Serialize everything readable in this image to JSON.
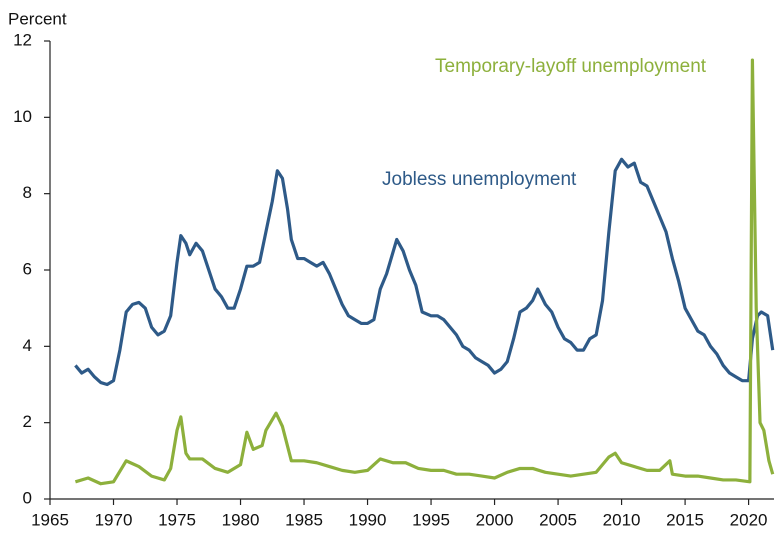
{
  "chart_data": {
    "type": "line",
    "ylabel": "Percent",
    "xlim": [
      1965,
      2022
    ],
    "xticks": [
      1965,
      1970,
      1975,
      1980,
      1985,
      1990,
      1995,
      2000,
      2005,
      2010,
      2015,
      2020
    ],
    "ylim": [
      0,
      12
    ],
    "yticks": [
      0,
      2,
      4,
      6,
      8,
      10,
      12
    ],
    "grid": false,
    "series": [
      {
        "name": "Jobless unemployment",
        "color": "#2e5a88",
        "x": [
          1967,
          1967.5,
          1968,
          1968.5,
          1969,
          1969.5,
          1970,
          1970.5,
          1971,
          1971.5,
          1972,
          1972.5,
          1973,
          1973.5,
          1974,
          1974.5,
          1975,
          1975.3,
          1975.7,
          1976,
          1976.5,
          1977,
          1977.5,
          1978,
          1978.5,
          1979,
          1979.5,
          1980,
          1980.5,
          1981,
          1981.5,
          1982,
          1982.5,
          1982.9,
          1983.3,
          1983.7,
          1984,
          1984.5,
          1985,
          1985.5,
          1986,
          1986.5,
          1987,
          1987.5,
          1988,
          1988.5,
          1989,
          1989.5,
          1990,
          1990.5,
          1991,
          1991.5,
          1992.3,
          1992.8,
          1993.3,
          1993.8,
          1994.3,
          1995,
          1995.5,
          1996,
          1996.5,
          1997,
          1997.5,
          1998,
          1998.5,
          1999,
          1999.5,
          2000,
          2000.5,
          2001,
          2001.5,
          2002,
          2002.5,
          2003,
          2003.4,
          2004,
          2004.5,
          2005,
          2005.5,
          2006,
          2006.5,
          2007,
          2007.5,
          2008,
          2008.5,
          2009,
          2009.5,
          2010,
          2010.5,
          2011,
          2011.5,
          2012,
          2012.5,
          2013,
          2013.5,
          2014,
          2014.5,
          2015,
          2015.5,
          2016,
          2016.5,
          2017,
          2017.5,
          2018,
          2018.5,
          2019,
          2019.5,
          2020,
          2020.3,
          2020.7,
          2021,
          2021.5,
          2021.9
        ],
        "values": [
          3.5,
          3.3,
          3.4,
          3.2,
          3.05,
          3.0,
          3.1,
          3.9,
          4.9,
          5.1,
          5.15,
          5.0,
          4.5,
          4.3,
          4.4,
          4.8,
          6.2,
          6.9,
          6.7,
          6.4,
          6.7,
          6.5,
          6.0,
          5.5,
          5.3,
          5.0,
          5.0,
          5.5,
          6.1,
          6.1,
          6.2,
          7.0,
          7.8,
          8.6,
          8.4,
          7.6,
          6.8,
          6.3,
          6.3,
          6.2,
          6.1,
          6.2,
          5.9,
          5.5,
          5.1,
          4.8,
          4.7,
          4.6,
          4.6,
          4.7,
          5.5,
          5.9,
          6.8,
          6.5,
          6.0,
          5.6,
          4.9,
          4.8,
          4.8,
          4.7,
          4.5,
          4.3,
          4.0,
          3.9,
          3.7,
          3.6,
          3.5,
          3.3,
          3.4,
          3.6,
          4.2,
          4.9,
          5.0,
          5.2,
          5.5,
          5.1,
          4.9,
          4.5,
          4.2,
          4.1,
          3.9,
          3.9,
          4.2,
          4.3,
          5.2,
          7.0,
          8.6,
          8.9,
          8.7,
          8.8,
          8.3,
          8.2,
          7.8,
          7.4,
          7.0,
          6.3,
          5.7,
          5.0,
          4.7,
          4.4,
          4.3,
          4.0,
          3.8,
          3.5,
          3.3,
          3.2,
          3.1,
          3.1,
          4.2,
          4.8,
          4.9,
          4.8,
          3.9
        ]
      },
      {
        "name": "Temporary-layoff unemployment",
        "color": "#8db03c",
        "x": [
          1967,
          1968,
          1969,
          1970,
          1971,
          1972,
          1973,
          1974,
          1974.5,
          1975,
          1975.3,
          1975.7,
          1976,
          1977,
          1978,
          1979,
          1980,
          1980.5,
          1981,
          1981.7,
          1982,
          1982.8,
          1983.3,
          1984,
          1985,
          1986,
          1987,
          1988,
          1989,
          1990,
          1991,
          1992,
          1993,
          1994,
          1995,
          1996,
          1997,
          1998,
          1999,
          2000,
          2001,
          2002,
          2003,
          2004,
          2005,
          2006,
          2007,
          2008,
          2009,
          2009.5,
          2010,
          2011,
          2012,
          2013,
          2013.8,
          2014,
          2015,
          2016,
          2017,
          2018,
          2019,
          2020.1,
          2020.3,
          2020.6,
          2020.9,
          2021.2,
          2021.6,
          2021.9
        ],
        "values": [
          0.45,
          0.55,
          0.4,
          0.45,
          1.0,
          0.85,
          0.6,
          0.5,
          0.8,
          1.8,
          2.15,
          1.2,
          1.05,
          1.05,
          0.8,
          0.7,
          0.9,
          1.75,
          1.3,
          1.4,
          1.8,
          2.25,
          1.9,
          1.0,
          1.0,
          0.95,
          0.85,
          0.75,
          0.7,
          0.75,
          1.05,
          0.95,
          0.95,
          0.8,
          0.75,
          0.75,
          0.65,
          0.65,
          0.6,
          0.55,
          0.7,
          0.8,
          0.8,
          0.7,
          0.65,
          0.6,
          0.65,
          0.7,
          1.1,
          1.2,
          0.95,
          0.85,
          0.75,
          0.75,
          1.0,
          0.65,
          0.6,
          0.6,
          0.55,
          0.5,
          0.5,
          0.45,
          11.5,
          5.0,
          2.0,
          1.8,
          1.0,
          0.65
        ]
      }
    ]
  }
}
